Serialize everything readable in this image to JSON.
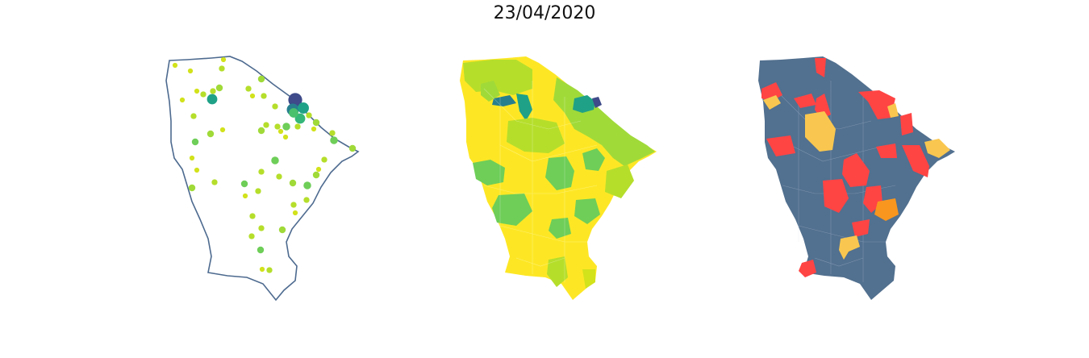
{
  "title": "23/04/2020",
  "colors": {
    "outline": "#4d6a8f",
    "state_fill_viridis": "#fde725",
    "state_fill_category": "#52708f",
    "category_red": "#ff4444",
    "category_yellow": "#f9c74f",
    "category_orange": "#f8961e",
    "viridis_lightgreen": "#b5de2b",
    "viridis_green": "#6ece58",
    "viridis_teal": "#1fa187",
    "viridis_darkteal": "#277f8e",
    "viridis_navy": "#3e4a89"
  },
  "panels": [
    {
      "name": "bubble-map",
      "description_kind": "proportional-symbol"
    },
    {
      "name": "choropleth-viridis",
      "description_kind": "choropleth"
    },
    {
      "name": "choropleth-categorical",
      "description_kind": "choropleth"
    }
  ],
  "markers": [
    {
      "value": 2,
      "color": "#d2e21b"
    },
    {
      "value": 2,
      "color": "#d2e21b"
    },
    {
      "value": 3,
      "color": "#b5de2b"
    },
    {
      "value": 2,
      "color": "#d2e21b"
    },
    {
      "value": 3,
      "color": "#b5de2b"
    },
    {
      "value": 2,
      "color": "#d2e21b"
    },
    {
      "value": 4,
      "color": "#a0da39"
    },
    {
      "value": 3,
      "color": "#b5de2b"
    },
    {
      "value": 2,
      "color": "#d2e21b"
    },
    {
      "value": 3,
      "color": "#b5de2b"
    },
    {
      "value": 8,
      "color": "#1fa187"
    },
    {
      "value": 3,
      "color": "#b5de2b"
    },
    {
      "value": 2,
      "color": "#d2e21b"
    },
    {
      "value": 3,
      "color": "#b5de2b"
    },
    {
      "value": 4,
      "color": "#a0da39"
    },
    {
      "value": 12,
      "color": "#3e4a89"
    },
    {
      "value": 10,
      "color": "#277f8e"
    },
    {
      "value": 9,
      "color": "#1fa187"
    },
    {
      "value": 8,
      "color": "#35b779"
    },
    {
      "value": 7,
      "color": "#4ac16d"
    },
    {
      "value": 5,
      "color": "#6ece58"
    },
    {
      "value": 3,
      "color": "#b5de2b"
    },
    {
      "value": 2,
      "color": "#d2e21b"
    },
    {
      "value": 3,
      "color": "#b5de2b"
    },
    {
      "value": 4,
      "color": "#a0da39"
    },
    {
      "value": 2,
      "color": "#d2e21b"
    },
    {
      "value": 4,
      "color": "#a0da39"
    },
    {
      "value": 3,
      "color": "#b5de2b"
    },
    {
      "value": 3,
      "color": "#b5de2b"
    },
    {
      "value": 4,
      "color": "#a0da39"
    },
    {
      "value": 2,
      "color": "#d2e21b"
    },
    {
      "value": 3,
      "color": "#b5de2b"
    },
    {
      "value": 2,
      "color": "#d2e21b"
    },
    {
      "value": 3,
      "color": "#b5de2b"
    },
    {
      "value": 5,
      "color": "#6ece58"
    },
    {
      "value": 4,
      "color": "#a0da39"
    },
    {
      "value": 3,
      "color": "#b5de2b"
    },
    {
      "value": 2,
      "color": "#d2e21b"
    },
    {
      "value": 4,
      "color": "#a0da39"
    },
    {
      "value": 5,
      "color": "#6ece58"
    },
    {
      "value": 3,
      "color": "#b5de2b"
    },
    {
      "value": 2,
      "color": "#d2e21b"
    },
    {
      "value": 4,
      "color": "#6ece58"
    },
    {
      "value": 2,
      "color": "#d2e21b"
    },
    {
      "value": 3,
      "color": "#b5de2b"
    },
    {
      "value": 4,
      "color": "#a0da39"
    },
    {
      "value": 4,
      "color": "#6ece58"
    },
    {
      "value": 3,
      "color": "#b5de2b"
    },
    {
      "value": 3,
      "color": "#b5de2b"
    },
    {
      "value": 4,
      "color": "#a0da39"
    },
    {
      "value": 3,
      "color": "#b5de2b"
    },
    {
      "value": 3,
      "color": "#b5de2b"
    },
    {
      "value": 5,
      "color": "#6ece58"
    },
    {
      "value": 3,
      "color": "#b5de2b"
    },
    {
      "value": 2,
      "color": "#d2e21b"
    },
    {
      "value": 3,
      "color": "#b5de2b"
    },
    {
      "value": 2,
      "color": "#d2e21b"
    },
    {
      "value": 4,
      "color": "#a0da39"
    },
    {
      "value": 3,
      "color": "#b5de2b"
    },
    {
      "value": 4,
      "color": "#6ece58"
    },
    {
      "value": 3,
      "color": "#b5de2b"
    },
    {
      "value": 2,
      "color": "#d2e21b"
    }
  ]
}
